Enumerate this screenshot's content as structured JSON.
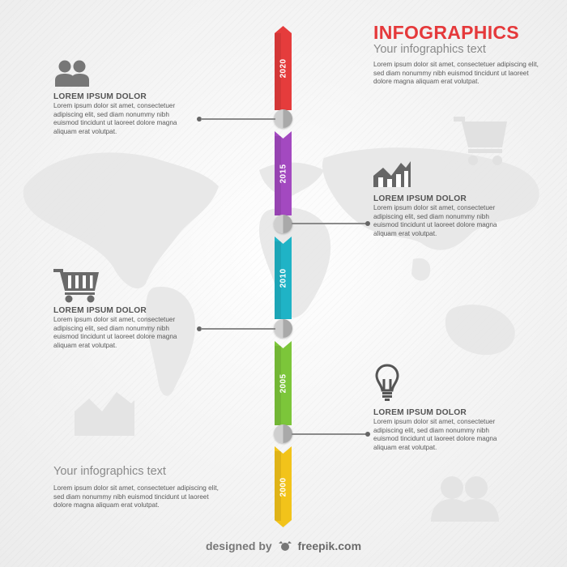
{
  "header": {
    "title": "INFOGRAPHICS",
    "subtitle": "Your infographics text",
    "body": "Lorem ipsum dolor sit amet, consectetuer adipiscing elit, sed diam nonummy nibh euismod tincidunt ut laoreet dolore magna aliquam erat volutpat."
  },
  "timeline": {
    "years": [
      "2020",
      "2015",
      "2010",
      "2005",
      "2000"
    ],
    "colors": [
      "#e53c3c",
      "#a349c0",
      "#1fb3c6",
      "#7cc63a",
      "#f2c31a"
    ]
  },
  "blocks": [
    {
      "heading": "LOREM IPSUM DOLOR",
      "text": "Lorem ipsum dolor sit amet, consectetuer adipiscing elit, sed diam nonummy nibh euismod tincidunt ut laoreet dolore magna aliquam erat volutpat.",
      "icon": "users-icon"
    },
    {
      "heading": "LOREM IPSUM DOLOR",
      "text": "Lorem ipsum dolor sit amet, consectetuer adipiscing elit, sed diam nonummy nibh euismod tincidunt ut laoreet dolore magna aliquam erat volutpat.",
      "icon": "chart-icon"
    },
    {
      "heading": "LOREM IPSUM DOLOR",
      "text": "Lorem ipsum dolor sit amet, consectetuer adipiscing elit, sed diam nonummy nibh euismod tincidunt ut laoreet dolore magna aliquam erat volutpat.",
      "icon": "cart-icon"
    },
    {
      "heading": "LOREM IPSUM DOLOR",
      "text": "Lorem ipsum dolor sit amet, consectetuer adipiscing elit, sed diam nonummy nibh euismod tincidunt ut laoreet dolore magna aliquam erat volutpat.",
      "icon": "lightbulb-icon"
    }
  ],
  "bottom": {
    "subtitle": "Your infographics text",
    "body": "Lorem ipsum dolor sit amet, consectetuer adipiscing elit, sed diam nonummy nibh euismod tincidunt ut laoreet dolore magna aliquam erat volutpat."
  },
  "footer": {
    "designed_by": "designed by",
    "brand": "freepik.com"
  }
}
